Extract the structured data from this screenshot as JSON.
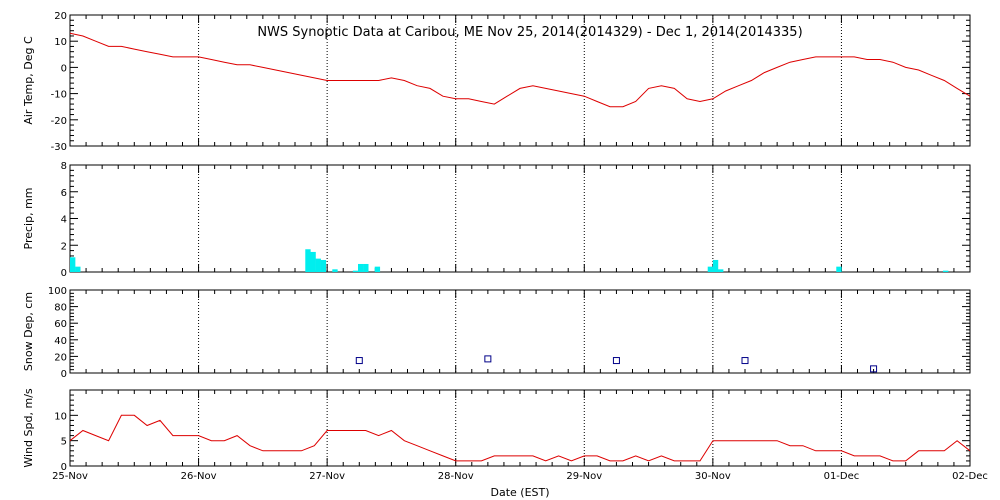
{
  "title": "NWS Synoptic Data at Caribou, ME   Nov 25, 2014(2014329) - Dec  1, 2014(2014335)",
  "xlabel": "Date (EST)",
  "x_ticks": [
    "25-Nov",
    "26-Nov",
    "27-Nov",
    "28-Nov",
    "29-Nov",
    "30-Nov",
    "01-Dec",
    "02-Dec"
  ],
  "colors": {
    "line": "#dd0000",
    "bar": "#00eeee",
    "marker": "#000088",
    "frame": "#000000",
    "grid": "#000000"
  },
  "chart_data": [
    {
      "type": "line",
      "ylabel": "Air Temp, Deg C",
      "ylim": [
        -30,
        20
      ],
      "y_ticks": [
        -30,
        -20,
        -10,
        0,
        10,
        20
      ],
      "x_unit": "days since 25-Nov 00:00 EST",
      "series": [
        {
          "x": [
            0,
            0.1,
            0.2,
            0.3,
            0.4,
            0.5,
            0.6,
            0.7,
            0.8,
            0.9,
            1.0,
            1.1,
            1.2,
            1.3,
            1.4,
            1.5,
            1.6,
            1.7,
            1.8,
            1.9,
            2.0,
            2.1,
            2.2,
            2.3,
            2.4,
            2.5,
            2.6,
            2.7,
            2.8,
            2.9,
            3.0,
            3.1,
            3.2,
            3.3,
            3.4,
            3.5,
            3.6,
            3.7,
            3.8,
            3.9,
            4.0,
            4.1,
            4.2,
            4.3,
            4.4,
            4.5,
            4.6,
            4.7,
            4.8,
            4.9,
            5.0,
            5.1,
            5.2,
            5.3,
            5.4,
            5.5,
            5.6,
            5.7,
            5.8,
            5.9,
            6.0,
            6.1,
            6.2,
            6.3,
            6.4,
            6.5,
            6.6,
            6.7,
            6.8,
            6.9,
            7.0
          ],
          "values": [
            13,
            12,
            10,
            8,
            8,
            7,
            6,
            5,
            4,
            4,
            4,
            3,
            2,
            1,
            1,
            0,
            -1,
            -2,
            -3,
            -4,
            -5,
            -5,
            -5,
            -5,
            -5,
            -4,
            -5,
            -7,
            -8,
            -11,
            -12,
            -12,
            -13,
            -14,
            -11,
            -8,
            -7,
            -8,
            -9,
            -10,
            -11,
            -13,
            -15,
            -15,
            -13,
            -8,
            -7,
            -8,
            -12,
            -13,
            -12,
            -9,
            -7,
            -5,
            -2,
            0,
            2,
            3,
            4,
            4,
            4,
            4,
            3,
            3,
            2,
            0,
            -1,
            -3,
            -5,
            -8,
            -11
          ]
        }
      ]
    },
    {
      "type": "bar",
      "ylabel": "Precip, mm",
      "ylim": [
        0,
        8
      ],
      "y_ticks": [
        0,
        2,
        4,
        6,
        8
      ],
      "x_unit": "days since 25-Nov 00:00 EST",
      "bar_width_days": 0.0417,
      "series": [
        {
          "x": [
            0.0,
            0.04,
            1.83,
            1.87,
            1.91,
            1.95,
            2.04,
            2.2,
            2.24,
            2.28,
            2.37,
            4.96,
            5.0,
            5.04,
            5.96,
            6.79
          ],
          "values": [
            1.1,
            0.4,
            1.7,
            1.5,
            1.0,
            0.9,
            0.2,
            0.1,
            0.6,
            0.6,
            0.4,
            0.4,
            0.9,
            0.2,
            0.4,
            0.1
          ]
        }
      ]
    },
    {
      "type": "scatter",
      "ylabel": "Snow Dep, cm",
      "ylim": [
        0,
        100
      ],
      "y_ticks": [
        0,
        20,
        40,
        60,
        80,
        100
      ],
      "x_unit": "days since 25-Nov 00:00 EST",
      "series": [
        {
          "x": [
            2.25,
            3.25,
            4.25,
            5.25,
            6.25
          ],
          "values": [
            15,
            17,
            15,
            15,
            5
          ]
        }
      ]
    },
    {
      "type": "line",
      "ylabel": "Wind Spd, m/s",
      "ylim": [
        0,
        15
      ],
      "y_ticks": [
        0,
        5,
        10
      ],
      "x_unit": "days since 25-Nov 00:00 EST",
      "series": [
        {
          "x": [
            0,
            0.1,
            0.2,
            0.3,
            0.4,
            0.5,
            0.6,
            0.7,
            0.8,
            0.9,
            1.0,
            1.1,
            1.2,
            1.3,
            1.4,
            1.5,
            1.6,
            1.7,
            1.8,
            1.9,
            2.0,
            2.1,
            2.2,
            2.3,
            2.4,
            2.5,
            2.6,
            2.7,
            2.8,
            2.9,
            3.0,
            3.1,
            3.2,
            3.3,
            3.4,
            3.5,
            3.6,
            3.7,
            3.8,
            3.9,
            4.0,
            4.1,
            4.2,
            4.3,
            4.4,
            4.5,
            4.6,
            4.7,
            4.8,
            4.9,
            5.0,
            5.1,
            5.2,
            5.3,
            5.4,
            5.5,
            5.6,
            5.7,
            5.8,
            5.9,
            6.0,
            6.1,
            6.2,
            6.3,
            6.4,
            6.5,
            6.6,
            6.7,
            6.8,
            6.9,
            7.0
          ],
          "values": [
            5,
            7,
            6,
            5,
            10,
            10,
            8,
            9,
            6,
            6,
            6,
            5,
            5,
            6,
            4,
            3,
            3,
            3,
            3,
            4,
            7,
            7,
            7,
            7,
            6,
            7,
            5,
            4,
            3,
            2,
            1,
            1,
            1,
            2,
            2,
            2,
            2,
            1,
            2,
            1,
            2,
            2,
            1,
            1,
            2,
            1,
            2,
            1,
            1,
            1,
            5,
            5,
            5,
            5,
            5,
            5,
            4,
            4,
            3,
            3,
            3,
            2,
            2,
            2,
            1,
            1,
            3,
            3,
            3,
            5,
            3
          ]
        }
      ]
    }
  ]
}
